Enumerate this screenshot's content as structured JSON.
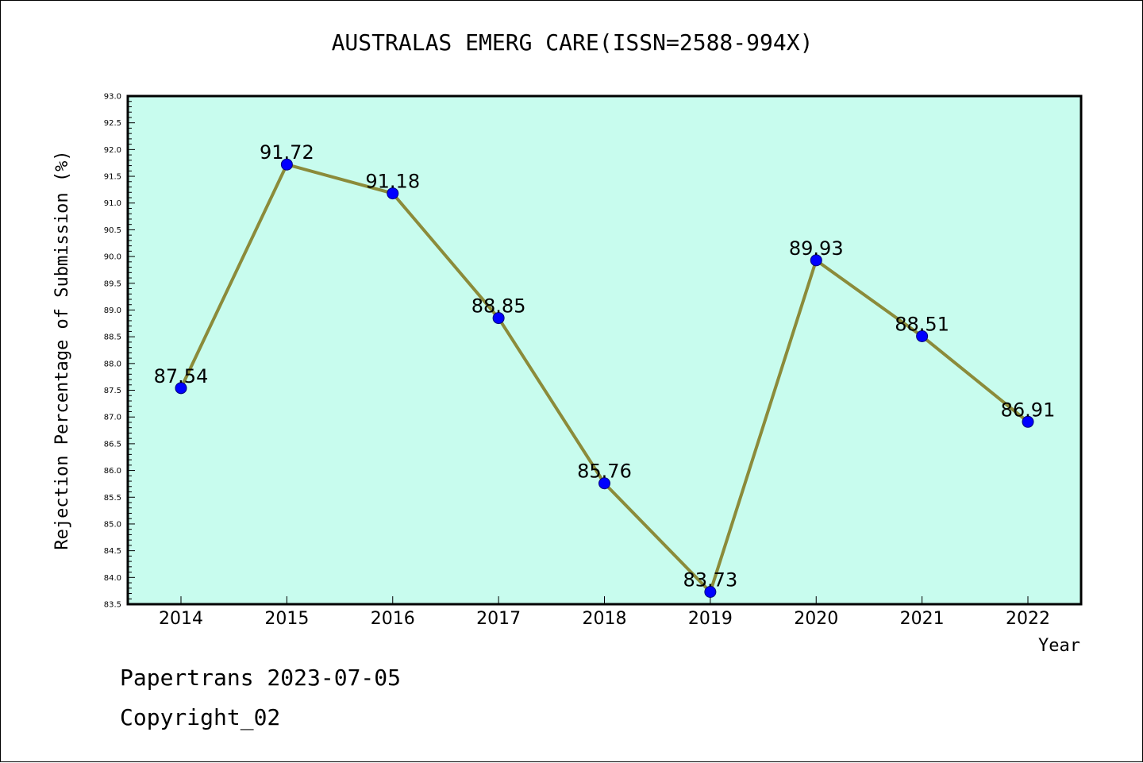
{
  "chart_data": {
    "type": "line",
    "title": "AUSTRALAS EMERG CARE(ISSN=2588-994X)",
    "xlabel": "Year",
    "ylabel": "Rejection Percentage of Submission (%)",
    "categories": [
      "2014",
      "2015",
      "2016",
      "2017",
      "2018",
      "2019",
      "2020",
      "2021",
      "2022"
    ],
    "values": [
      87.54,
      91.72,
      91.18,
      88.85,
      85.76,
      83.73,
      89.93,
      88.51,
      86.91
    ],
    "data_labels": [
      "87.54",
      "91.72",
      "91.18",
      "88.85",
      "85.76",
      "83.73",
      "89.93",
      "88.51",
      "86.91"
    ],
    "ylim": [
      83.5,
      93.0
    ],
    "yticks": [
      "83.5",
      "84.0",
      "84.5",
      "85.0",
      "85.5",
      "86.0",
      "86.5",
      "87.0",
      "87.5",
      "88.0",
      "88.5",
      "89.0",
      "89.5",
      "90.0",
      "90.5",
      "91.0",
      "91.5",
      "92.0",
      "92.5",
      "93.0"
    ],
    "grid": false,
    "colors": {
      "plot_background": "#c8fcee",
      "line": "#8b8b3a",
      "marker": "#0000ff"
    }
  },
  "footer": {
    "line1": "Papertrans 2023-07-05",
    "line2": "Copyright_02"
  }
}
